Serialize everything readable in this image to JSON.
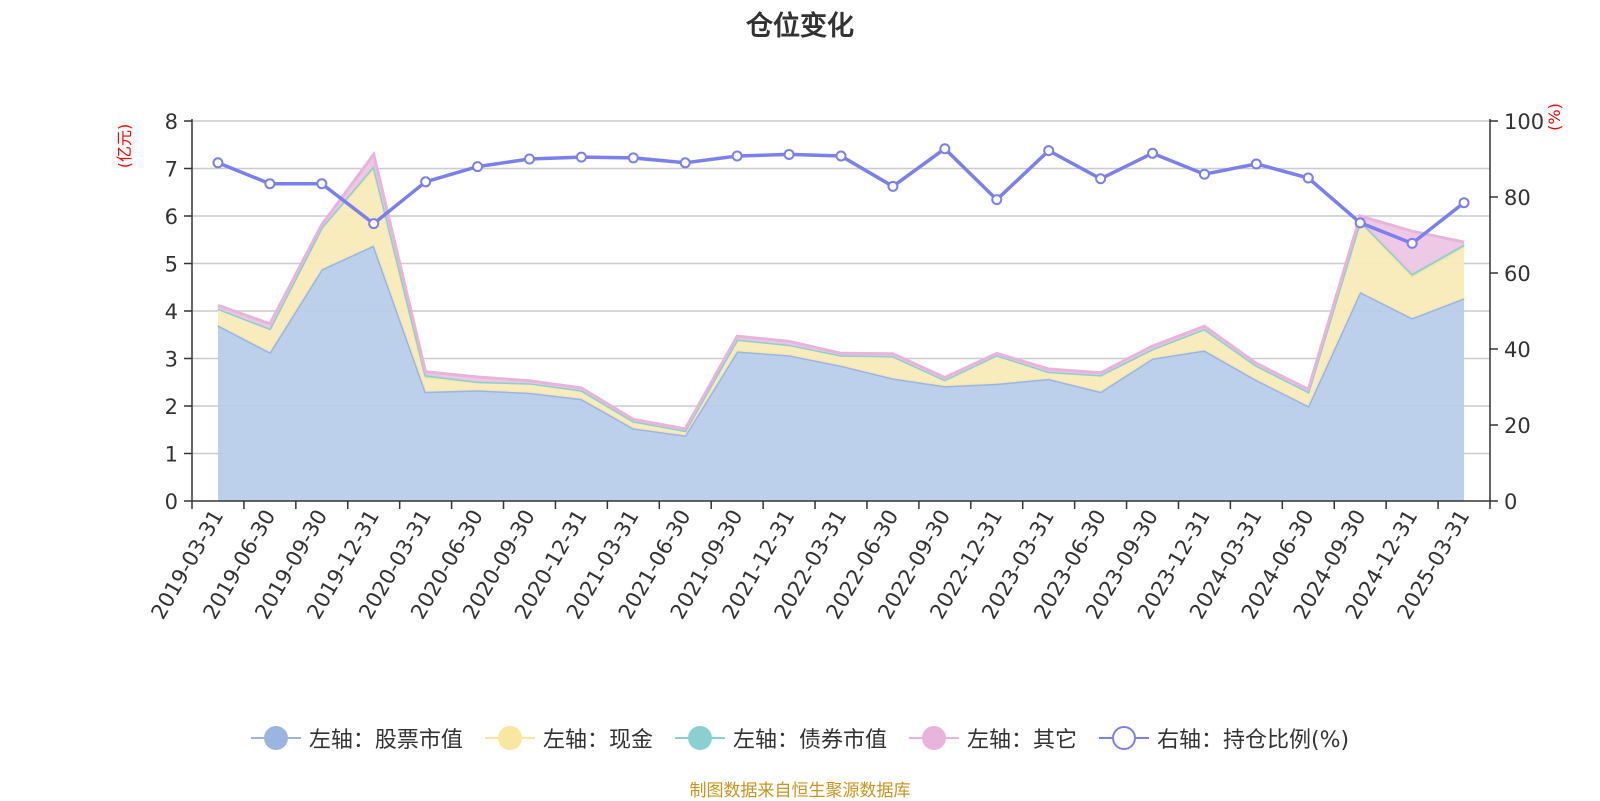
{
  "chart_data": {
    "type": "area",
    "title": "仓位变化",
    "left_axis_unit": "(亿元)",
    "right_axis_unit": "(%)",
    "categories": [
      "2019-03-31",
      "2019-06-30",
      "2019-09-30",
      "2019-12-31",
      "2020-03-31",
      "2020-06-30",
      "2020-09-30",
      "2020-12-31",
      "2021-03-31",
      "2021-06-30",
      "2021-09-30",
      "2021-12-31",
      "2022-03-31",
      "2022-06-30",
      "2022-09-30",
      "2022-12-31",
      "2023-03-31",
      "2023-06-30",
      "2023-09-30",
      "2023-12-31",
      "2024-03-31",
      "2024-06-30",
      "2024-09-30",
      "2024-12-31",
      "2025-03-31"
    ],
    "ylim_left": [
      0,
      8
    ],
    "yticks_left": [
      0,
      1,
      2,
      3,
      4,
      5,
      6,
      7,
      8
    ],
    "ylim_right": [
      0,
      100
    ],
    "yticks_right": [
      0,
      20,
      40,
      60,
      80,
      100
    ],
    "grid": true,
    "legend_position": "bottom",
    "stacked_series": [
      {
        "name": "左轴：股票市值",
        "axis": "left",
        "color": "#9ab6e0",
        "fill": "#b8cdeb",
        "values": [
          3.7,
          3.13,
          4.88,
          5.38,
          2.3,
          2.33,
          2.28,
          2.15,
          1.53,
          1.38,
          3.15,
          3.07,
          2.85,
          2.58,
          2.42,
          2.47,
          2.57,
          2.3,
          3.0,
          3.17,
          2.55,
          2.0,
          4.4,
          3.85,
          4.27
        ]
      },
      {
        "name": "左轴：现金",
        "axis": "left",
        "color": "#f9e79f",
        "fill": "#f8eab8",
        "values": [
          0.35,
          0.5,
          0.88,
          1.62,
          0.3,
          0.18,
          0.2,
          0.18,
          0.15,
          0.1,
          0.25,
          0.22,
          0.22,
          0.47,
          0.13,
          0.6,
          0.15,
          0.35,
          0.2,
          0.45,
          0.3,
          0.3,
          1.48,
          0.88,
          1.08
        ]
      },
      {
        "name": "左轴：债券市值",
        "axis": "left",
        "color": "#88d1cf",
        "fill": "#a8dcd8",
        "values": [
          0,
          0,
          0,
          0.05,
          0.05,
          0,
          0,
          0,
          0,
          0,
          0,
          0,
          0,
          0,
          0,
          0,
          0,
          0,
          0,
          0,
          0,
          0,
          0.02,
          0.05,
          0.05
        ]
      },
      {
        "name": "左轴：其它",
        "axis": "left",
        "color": "#e8b4dc",
        "fill": "#edc6e4",
        "values": [
          0.07,
          0.1,
          0.06,
          0.25,
          0.07,
          0.1,
          0.05,
          0.05,
          0.04,
          0.04,
          0.07,
          0.07,
          0.04,
          0.05,
          0.05,
          0.04,
          0.06,
          0.05,
          0.06,
          0.06,
          0.05,
          0.05,
          0.1,
          0.9,
          0.05
        ]
      }
    ],
    "line_series": {
      "name": "右轴：持仓比例(%)",
      "axis": "right",
      "color": "#7b7ff0",
      "values": [
        89,
        83.5,
        83.5,
        73,
        84,
        88,
        90,
        90.5,
        90.3,
        89,
        90.8,
        91.2,
        90.8,
        82.8,
        92.7,
        79.3,
        92.2,
        84.8,
        91.5,
        86,
        88.7,
        85,
        73.2,
        67.8,
        78.5
      ]
    }
  },
  "legend": [
    {
      "label": "左轴：股票市值",
      "color": "#9ab6e0",
      "style": "filled"
    },
    {
      "label": "左轴：现金",
      "color": "#f9e79f",
      "style": "filled"
    },
    {
      "label": "左轴：债券市值",
      "color": "#88d1cf",
      "style": "filled"
    },
    {
      "label": "左轴：其它",
      "color": "#e8b4dc",
      "style": "filled"
    },
    {
      "label": "右轴：持仓比例(%)",
      "color": "#7b7ff0",
      "style": "hollow"
    }
  ],
  "footer": {
    "source": "制图数据来自恒生聚源数据库"
  }
}
